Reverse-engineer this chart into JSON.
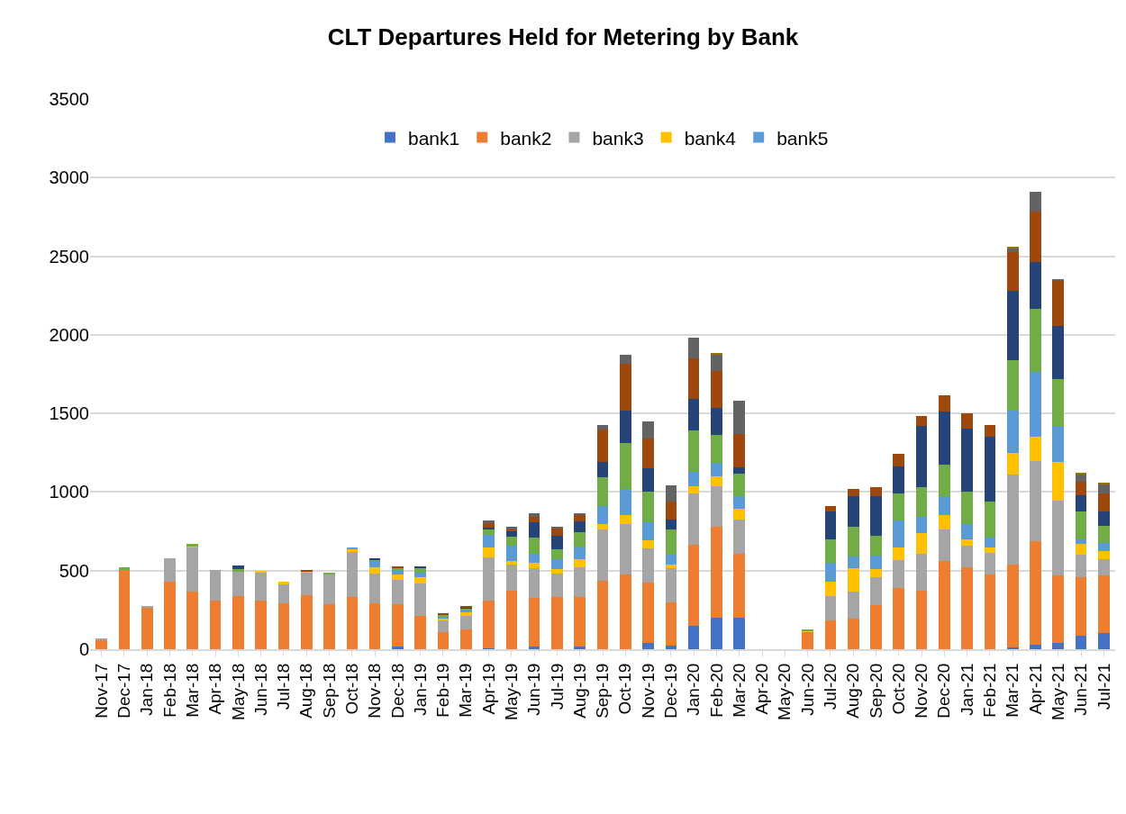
{
  "chart_data": {
    "type": "bar",
    "title": "CLT Departures Held for Metering by Bank",
    "stacked": true,
    "categories": [
      "Nov-17",
      "Dec-17",
      "Jan-18",
      "Feb-18",
      "Mar-18",
      "Apr-18",
      "May-18",
      "Jun-18",
      "Jul-18",
      "Aug-18",
      "Sep-18",
      "Oct-18",
      "Nov-18",
      "Dec-18",
      "Jan-19",
      "Feb-19",
      "Mar-19",
      "Apr-19",
      "May-19",
      "Jun-19",
      "Jul-19",
      "Aug-19",
      "Sep-19",
      "Oct-19",
      "Nov-19",
      "Dec-19",
      "Jan-20",
      "Feb-20",
      "Mar-20",
      "Apr-20",
      "May-20",
      "Jun-20",
      "Jul-20",
      "Aug-20",
      "Sep-20",
      "Oct-20",
      "Nov-20",
      "Dec-20",
      "Jan-21",
      "Feb-21",
      "Mar-21",
      "Apr-21",
      "May-21",
      "Jun-21",
      "Jul-21"
    ],
    "series": [
      {
        "name": "bank1",
        "color": "#4472c4",
        "values": [
          0,
          0,
          0,
          0,
          0,
          0,
          0,
          0,
          0,
          0,
          0,
          0,
          0,
          15,
          0,
          0,
          0,
          8,
          0,
          15,
          0,
          15,
          0,
          0,
          38,
          25,
          148,
          203,
          199,
          0,
          0,
          0,
          0,
          0,
          0,
          0,
          0,
          0,
          0,
          0,
          10,
          30,
          38,
          84,
          104
        ]
      },
      {
        "name": "bank2",
        "color": "#ed7d31",
        "values": [
          60,
          505,
          266,
          431,
          364,
          307,
          337,
          312,
          291,
          345,
          285,
          335,
          295,
          269,
          211,
          107,
          125,
          304,
          372,
          313,
          331,
          315,
          437,
          473,
          384,
          272,
          515,
          575,
          406,
          0,
          0,
          111,
          186,
          192,
          278,
          387,
          375,
          564,
          520,
          474,
          526,
          657,
          434,
          376,
          364
        ]
      },
      {
        "name": "bank3",
        "color": "#a5a5a5",
        "values": [
          5,
          null,
          8,
          146,
          286,
          197,
          161,
          178,
          125,
          145,
          188,
          286,
          184,
          157,
          205,
          81,
          86,
          270,
          164,
          185,
          148,
          193,
          326,
          322,
          220,
          216,
          330,
          257,
          219,
          0,
          0,
          0,
          153,
          174,
          178,
          178,
          235,
          199,
          139,
          138,
          578,
          512,
          476,
          142,
          102
        ]
      },
      {
        "name": "bank4",
        "color": "#ffc000",
        "values": [
          0,
          0,
          0,
          0,
          8,
          0,
          0,
          8,
          11,
          8,
          0,
          17,
          44,
          33,
          40,
          11,
          27,
          63,
          27,
          36,
          33,
          52,
          33,
          57,
          54,
          27,
          46,
          67,
          69,
          0,
          0,
          8,
          90,
          151,
          54,
          84,
          129,
          92,
          38,
          36,
          133,
          155,
          241,
          66,
          54
        ]
      },
      {
        "name": "bank5",
        "color": "#5b9bd5",
        "values": [
          0,
          0,
          0,
          0,
          0,
          0,
          0,
          0,
          0,
          0,
          0,
          10,
          33,
          25,
          29,
          10,
          10,
          82,
          96,
          57,
          59,
          77,
          117,
          167,
          113,
          61,
          92,
          86,
          80,
          0,
          0,
          0,
          119,
          71,
          84,
          171,
          104,
          116,
          98,
          64,
          273,
          408,
          233,
          32,
          50
        ]
      },
      {
        "color": "#70ad47",
        "values": [
          0,
          14,
          0,
          0,
          10,
          0,
          11,
          0,
          0,
          0,
          15,
          0,
          13,
          19,
          34,
          11,
          11,
          38,
          56,
          103,
          67,
          90,
          180,
          291,
          192,
          161,
          261,
          178,
          144,
          0,
          0,
          6,
          149,
          192,
          125,
          171,
          187,
          205,
          207,
          225,
          317,
          404,
          297,
          177,
          110
        ]
      },
      {
        "color": "#264478",
        "values": [
          0,
          0,
          0,
          0,
          0,
          0,
          23,
          0,
          0,
          0,
          0,
          0,
          10,
          0,
          8,
          0,
          6,
          8,
          34,
          98,
          84,
          69,
          100,
          209,
          151,
          61,
          203,
          167,
          42,
          0,
          0,
          0,
          180,
          195,
          257,
          172,
          392,
          335,
          404,
          414,
          444,
          299,
          335,
          100,
          94
        ]
      },
      {
        "color": "#9e480e",
        "values": [
          0,
          0,
          0,
          0,
          0,
          0,
          0,
          0,
          0,
          4,
          0,
          0,
          0,
          6,
          0,
          11,
          11,
          31,
          15,
          34,
          50,
          46,
          207,
          299,
          190,
          119,
          253,
          236,
          211,
          0,
          0,
          0,
          33,
          44,
          54,
          82,
          60,
          102,
          94,
          78,
          245,
          317,
          289,
          86,
          112
        ]
      },
      {
        "color": "#636363",
        "values": [
          0,
          0,
          0,
          0,
          0,
          0,
          0,
          0,
          0,
          0,
          0,
          0,
          0,
          0,
          0,
          0,
          0,
          13,
          15,
          25,
          8,
          10,
          25,
          54,
          107,
          98,
          136,
          103,
          209,
          0,
          0,
          0,
          0,
          0,
          0,
          0,
          0,
          0,
          0,
          0,
          24,
          129,
          10,
          50,
          60
        ]
      },
      {
        "color": "#997300",
        "values": [
          0,
          0,
          0,
          0,
          0,
          0,
          0,
          0,
          0,
          0,
          0,
          0,
          0,
          0,
          0,
          0,
          0,
          0,
          0,
          0,
          0,
          0,
          0,
          0,
          0,
          0,
          0,
          15,
          0,
          0,
          0,
          0,
          0,
          0,
          0,
          0,
          0,
          0,
          0,
          0,
          12,
          0,
          0,
          8,
          12
        ]
      }
    ],
    "ylim": [
      0,
      3500
    ],
    "yticks": [
      0,
      500,
      1000,
      1500,
      2000,
      2500,
      3000,
      3500
    ],
    "grid": "y",
    "legend": "top"
  }
}
